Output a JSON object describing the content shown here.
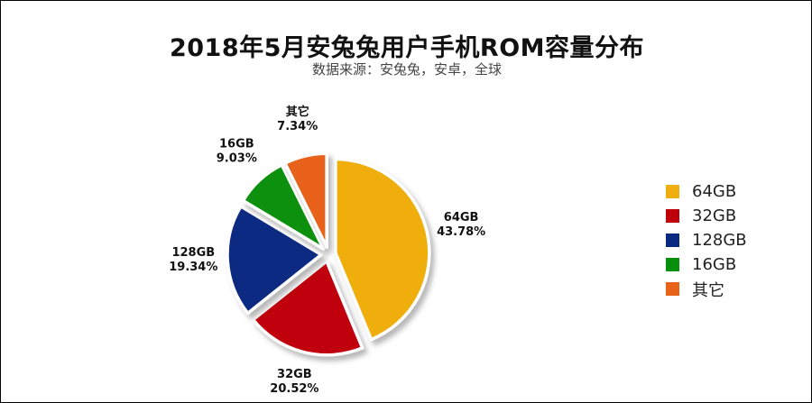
{
  "chart_data": {
    "type": "pie",
    "title": "2018年5月安兔兔用户手机ROM容量分布",
    "subtitle": "数据来源：安兔兔，安卓，全球",
    "slices": [
      {
        "label": "64GB",
        "value": 43.78,
        "value_label": "43.78%",
        "color": "#F0AE10"
      },
      {
        "label": "32GB",
        "value": 20.52,
        "value_label": "20.52%",
        "color": "#C00008"
      },
      {
        "label": "128GB",
        "value": 19.34,
        "value_label": "19.34%",
        "color": "#0A2A82"
      },
      {
        "label": "16GB",
        "value": 9.03,
        "value_label": "9.03%",
        "color": "#08900C"
      },
      {
        "label": "其它",
        "value": 7.34,
        "value_label": "7.34%",
        "color": "#E8621A"
      }
    ],
    "legend": {
      "placement": "right",
      "entries": [
        "64GB",
        "32GB",
        "128GB",
        "16GB",
        "其它"
      ]
    }
  }
}
